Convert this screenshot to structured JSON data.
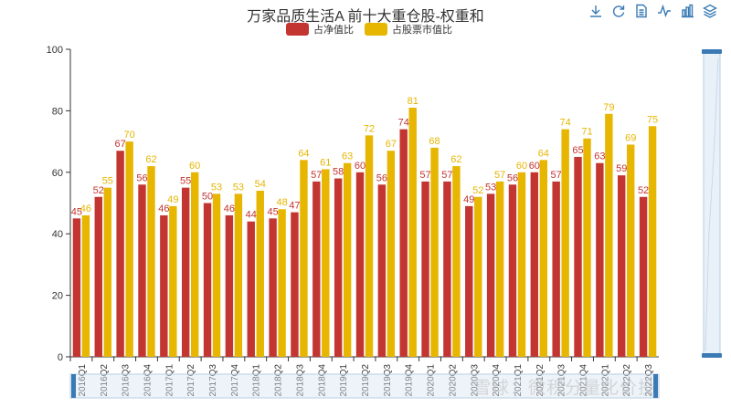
{
  "title": "万家品质生活A 前十大重仓股-权重和",
  "legend": [
    {
      "label": "占净值比",
      "color": "#c23531"
    },
    {
      "label": "占股票市值比",
      "color": "#e6b600"
    }
  ],
  "toolbox": [
    "download-icon",
    "refresh-icon",
    "data-view-icon",
    "line-chart-icon",
    "bar-chart-icon",
    "stack-icon"
  ],
  "watermark": "雪球：微积分量化价投",
  "chart_data": {
    "type": "bar",
    "title": "万家品质生活A 前十大重仓股-权重和",
    "categories": [
      "2016Q1",
      "2016Q2",
      "2016Q3",
      "2016Q4",
      "2017Q1",
      "2017Q2",
      "2017Q3",
      "2017Q4",
      "2018Q1",
      "2018Q2",
      "2018Q3",
      "2018Q4",
      "2019Q1",
      "2019Q2",
      "2019Q3",
      "2019Q4",
      "2020Q1",
      "2020Q2",
      "2020Q3",
      "2020Q4",
      "2021Q1",
      "2021Q2",
      "2021Q3",
      "2021Q4",
      "2022Q1",
      "2022Q2",
      "2022Q3"
    ],
    "series": [
      {
        "name": "占净值比",
        "color": "#c23531",
        "values": [
          45,
          52,
          67,
          56,
          46,
          55,
          50,
          46,
          44,
          45,
          47,
          57,
          58,
          60,
          56,
          74,
          57,
          57,
          49,
          53,
          56,
          60,
          57,
          65,
          63,
          59,
          52
        ]
      },
      {
        "name": "占股票市值比",
        "color": "#e6b600",
        "values": [
          46,
          55,
          70,
          62,
          49,
          60,
          53,
          53,
          54,
          48,
          64,
          61,
          63,
          72,
          67,
          81,
          68,
          62,
          52,
          57,
          60,
          64,
          74,
          71,
          79,
          69,
          75
        ]
      }
    ],
    "yticks": [
      0,
      20,
      40,
      60,
      80,
      100
    ],
    "ylim": [
      0,
      100
    ],
    "legend_position": "top-center",
    "grid": false
  }
}
